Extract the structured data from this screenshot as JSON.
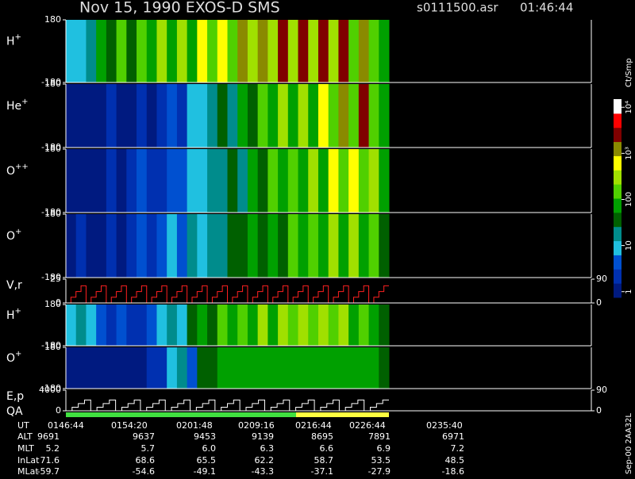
{
  "header": {
    "title": "Nov 15, 1990   EXOS-D SMS",
    "file": "s0111500.asr",
    "time": "01:46:44",
    "footer": "Sep-00  2AA32L"
  },
  "colorbar": {
    "title": "Ct/Smp",
    "clim": [
      0.75,
      15000
    ],
    "log": true,
    "colors": [
      "#001a80",
      "#0030b0",
      "#0050d0",
      "#20c0e0",
      "#008c8c",
      "#006000",
      "#00a000",
      "#50d000",
      "#a0e000",
      "#ffff00",
      "#8a8a00",
      "#800000",
      "#ff0000",
      "#ffffff"
    ],
    "ticks": [
      1,
      10,
      100,
      {
        "value": 1000,
        "label": "10³"
      },
      {
        "value": 10000,
        "label": "10⁴"
      }
    ]
  },
  "chart_data": [
    {
      "type": "heatmap",
      "label": "H",
      "sup": "+",
      "ylim": [
        -180,
        180
      ],
      "yticks": [
        180,
        -180
      ],
      "values": [
        8,
        12,
        20,
        60,
        30,
        150,
        40,
        200,
        60,
        250,
        80,
        300,
        100,
        600,
        150,
        800,
        200,
        1500,
        300,
        1200,
        250,
        2000,
        300,
        1800,
        250,
        2500,
        300,
        2000,
        200,
        1500,
        150,
        80
      ]
    },
    {
      "type": "heatmap",
      "label": "He",
      "sup": "+",
      "ylim": [
        -180,
        180
      ],
      "yticks": [
        180,
        -180
      ],
      "values": [
        1,
        1,
        1,
        1,
        2,
        1,
        1,
        3,
        1,
        2,
        5,
        3,
        8,
        10,
        15,
        30,
        20,
        80,
        40,
        150,
        60,
        300,
        80,
        400,
        100,
        800,
        150,
        1500,
        200,
        2500,
        150,
        60
      ]
    },
    {
      "type": "heatmap",
      "label": "O",
      "sup": "++",
      "ylim": [
        -180,
        180
      ],
      "yticks": [
        180,
        -180
      ],
      "values": [
        1,
        1,
        1,
        1,
        2,
        1,
        2,
        4,
        2,
        3,
        6,
        5,
        12,
        8,
        20,
        15,
        40,
        25,
        80,
        40,
        150,
        60,
        200,
        80,
        300,
        100,
        500,
        150,
        800,
        200,
        400,
        60
      ]
    },
    {
      "type": "heatmap",
      "label": "O",
      "sup": "+",
      "ylim": [
        -180,
        180
      ],
      "yticks": [
        180,
        -180
      ],
      "values": [
        1,
        2,
        1,
        1,
        3,
        1,
        2,
        4,
        3,
        4,
        8,
        6,
        15,
        10,
        25,
        20,
        40,
        30,
        60,
        40,
        100,
        50,
        150,
        60,
        200,
        70,
        300,
        80,
        400,
        90,
        150,
        50
      ]
    },
    {
      "type": "line",
      "label": "V,r",
      "color": "#ff2020",
      "ylim": [
        0,
        25
      ],
      "yticks": [
        25,
        0
      ],
      "y2lim": [
        0,
        90
      ],
      "y2ticks": [
        90,
        0
      ],
      "values": [
        0,
        6,
        12,
        18,
        0,
        6,
        12,
        18,
        0,
        6,
        12,
        18,
        0,
        6,
        12,
        18,
        0,
        6,
        12,
        18,
        0,
        6,
        12,
        18,
        0,
        6,
        12,
        18,
        0,
        6,
        12,
        18,
        0,
        6,
        12,
        18,
        0,
        6,
        12,
        18,
        0,
        6,
        12,
        18,
        0,
        6,
        12,
        18,
        0,
        6,
        12,
        18,
        0,
        6,
        12,
        18,
        0,
        6,
        12,
        18,
        0,
        6,
        12,
        18
      ]
    },
    {
      "type": "heatmap",
      "label": "H",
      "sup": "+",
      "ylim": [
        -180,
        180
      ],
      "yticks": [
        180,
        -180
      ],
      "values": [
        10,
        20,
        8,
        5,
        3,
        5,
        2,
        3,
        6,
        10,
        15,
        10,
        30,
        60,
        40,
        150,
        60,
        200,
        80,
        250,
        100,
        300,
        120,
        350,
        140,
        300,
        120,
        250,
        100,
        200,
        80,
        40
      ]
    },
    {
      "type": "heatmap",
      "label": "O",
      "sup": "+",
      "ylim": [
        -180,
        180
      ],
      "yticks": [
        180,
        -180
      ],
      "values": [
        1,
        1,
        1,
        1,
        1,
        1,
        1,
        1,
        2,
        3,
        8,
        15,
        5,
        40,
        50,
        60,
        70,
        60,
        80,
        70,
        90,
        80,
        100,
        90,
        100,
        90,
        100,
        90,
        80,
        70,
        60,
        50
      ]
    },
    {
      "type": "line",
      "label": "E,p",
      "sublabel": "QA",
      "color": "#ffffff",
      "ylim": [
        0,
        4000
      ],
      "yticks": [
        4000,
        0
      ],
      "y2lim": [
        0,
        90
      ],
      "y2ticks": [
        90,
        0
      ],
      "values": [
        0,
        700,
        1400,
        2100,
        0,
        700,
        1400,
        2100,
        0,
        700,
        1400,
        2100,
        0,
        700,
        1400,
        2100,
        0,
        700,
        1400,
        2100,
        0,
        700,
        1400,
        2100,
        0,
        700,
        1400,
        2100,
        0,
        700,
        1400,
        2100,
        0,
        700,
        1400,
        2100,
        0,
        700,
        1400,
        2100,
        0,
        700,
        1400,
        2100,
        0,
        700,
        1400,
        2100,
        0,
        700,
        1400,
        2100
      ]
    }
  ],
  "table": {
    "rows": [
      {
        "label": "UT",
        "values": [
          "0146:44",
          "0154:20",
          "0201:48",
          "0209:16",
          "0216:44",
          "0226:44",
          "0235:40"
        ]
      },
      {
        "label": "ALT",
        "values": [
          "9691",
          "9637",
          "9453",
          "9139",
          "8695",
          "7891",
          "6971"
        ]
      },
      {
        "label": "MLT",
        "values": [
          "5.2",
          "5.7",
          "6.0",
          "6.3",
          "6.6",
          "6.9",
          "7.2"
        ]
      },
      {
        "label": "InLat",
        "values": [
          "71.6",
          "68.6",
          "65.5",
          "62.2",
          "58.7",
          "53.5",
          "48.5"
        ]
      },
      {
        "label": "MLat",
        "values": [
          "-59.7",
          "-54.6",
          "-49.1",
          "-43.3",
          "-37.1",
          "-27.9",
          "-18.6"
        ]
      }
    ]
  }
}
